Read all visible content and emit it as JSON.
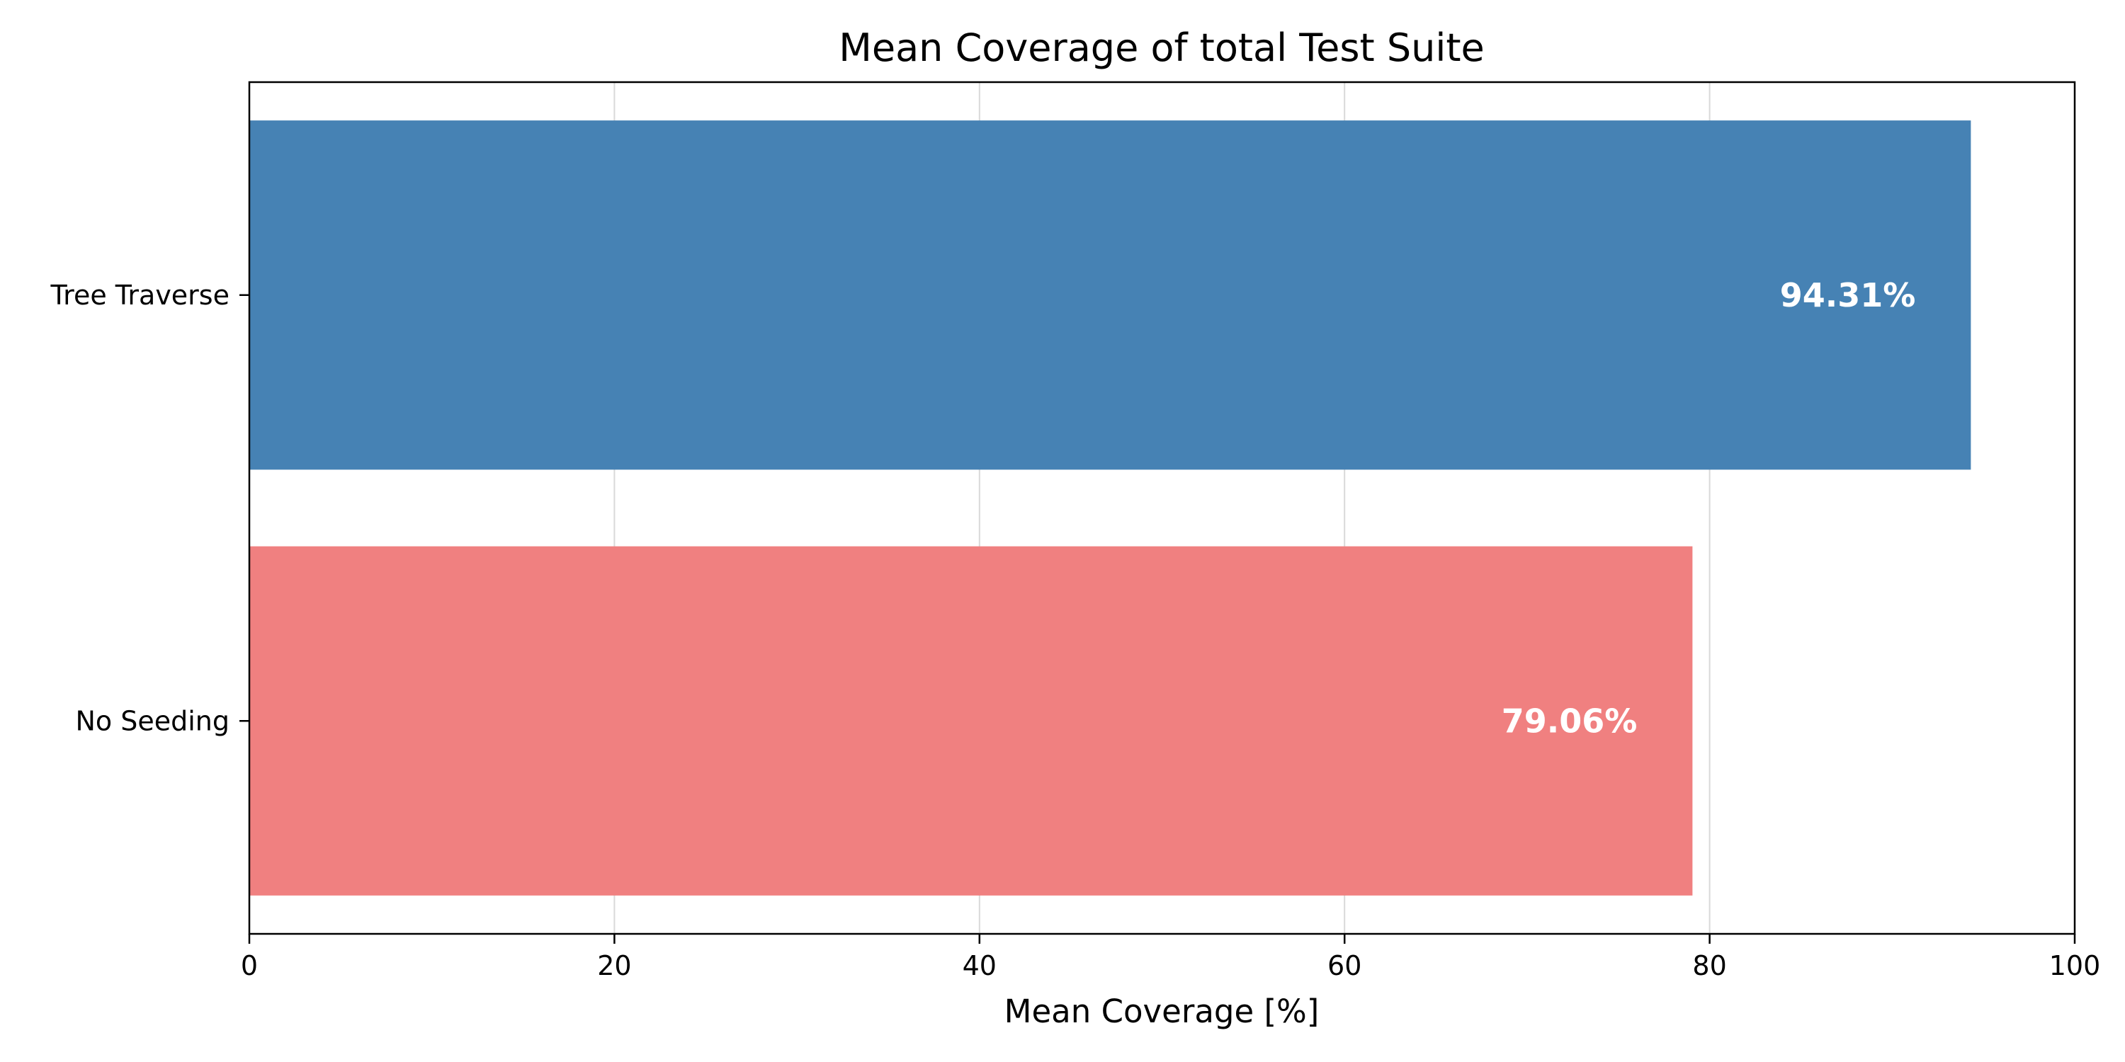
{
  "chart_data": {
    "type": "bar",
    "orientation": "horizontal",
    "title": "Mean Coverage of total Test Suite",
    "xlabel": "Mean Coverage [%]",
    "ylabel": "",
    "xlim": [
      0,
      100
    ],
    "xticks": [
      0,
      20,
      40,
      60,
      80,
      100
    ],
    "xtick_labels": [
      "0",
      "20",
      "40",
      "60",
      "80",
      "100"
    ],
    "grid": "x",
    "categories": [
      "Tree Traverse",
      "No Seeding"
    ],
    "values": [
      94.31,
      79.06
    ],
    "data_labels": [
      "94.31%",
      "79.06%"
    ],
    "colors": [
      "#4682b4",
      "#f08080"
    ]
  }
}
